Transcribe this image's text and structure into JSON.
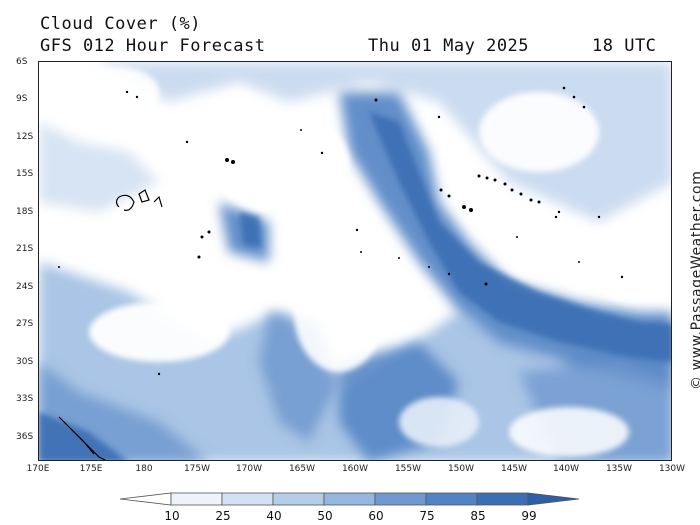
{
  "header": {
    "title": "Cloud Cover (%)",
    "subtitle": "GFS 012 Hour Forecast",
    "date": "Thu 01 May 2025",
    "time": "18 UTC"
  },
  "watermark": "© www.PassageWeather.com",
  "axes": {
    "lat_labels": [
      "6S",
      "9S",
      "12S",
      "15S",
      "18S",
      "21S",
      "24S",
      "27S",
      "30S",
      "33S",
      "36S"
    ],
    "lon_labels": [
      "170E",
      "175E",
      "180",
      "175W",
      "170W",
      "165W",
      "160W",
      "155W",
      "150W",
      "145W",
      "140W",
      "135W",
      "130W"
    ]
  },
  "legend": {
    "values": [
      "10",
      "25",
      "40",
      "50",
      "60",
      "75",
      "85",
      "99"
    ],
    "colors": [
      "#ffffff",
      "#eef3fa",
      "#d3e1f2",
      "#b6cde9",
      "#95b6de",
      "#7099cf",
      "#5283c4",
      "#3b6eb3",
      "#2d5fa5"
    ]
  }
}
